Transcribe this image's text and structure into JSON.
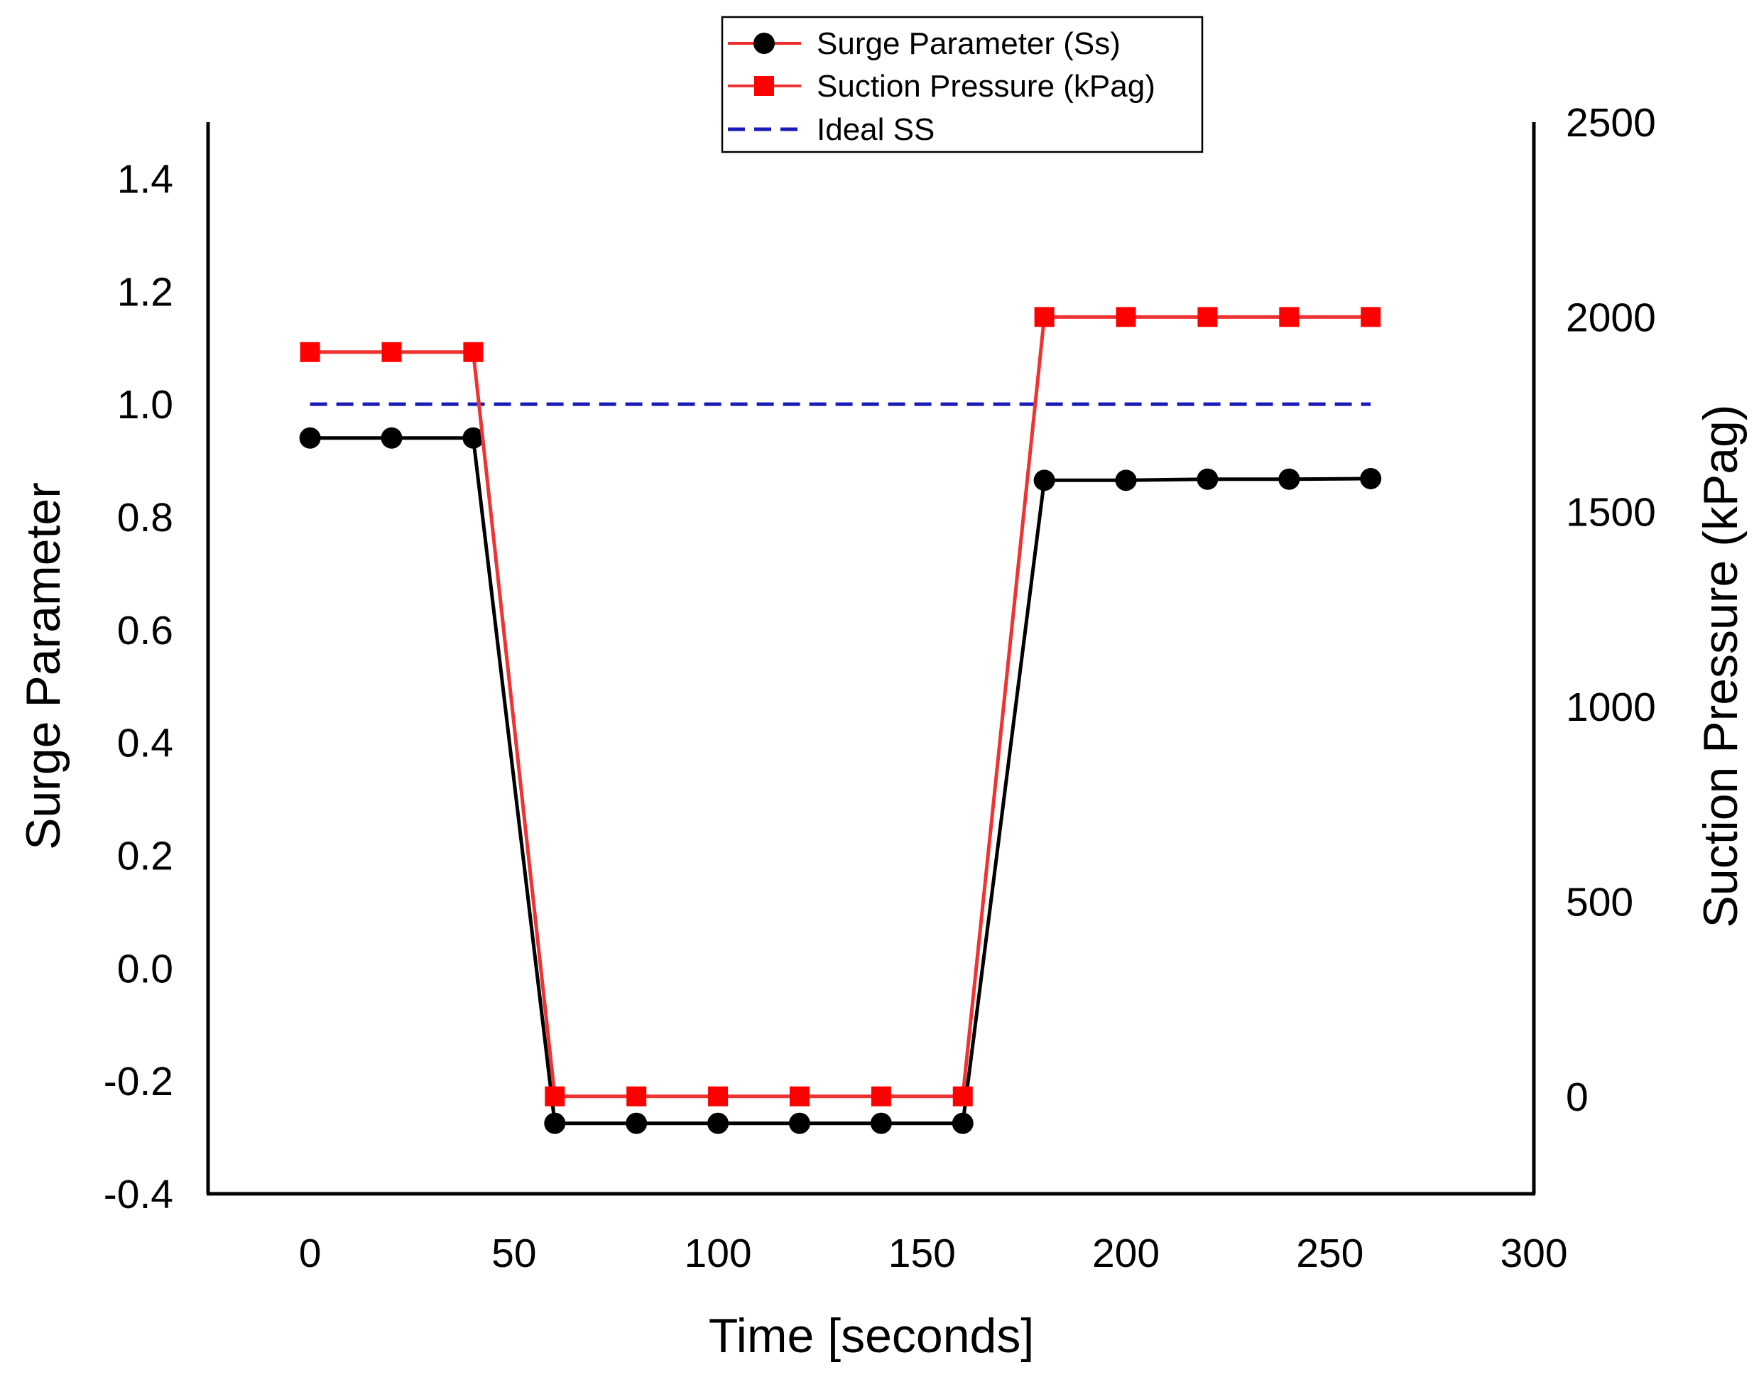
{
  "chart_data": {
    "type": "line",
    "title": "",
    "xlabel": "Time [seconds]",
    "ylabel": "Surge Parameter",
    "y2label": "Suction Pressure (kPag)",
    "xlim": [
      -25,
      300
    ],
    "ylim": [
      -0.4,
      1.5
    ],
    "y2lim": [
      -250,
      2500
    ],
    "x_ticks": [
      0,
      50,
      100,
      150,
      200,
      250,
      300
    ],
    "x_tick_labels": [
      "0",
      "50",
      "100",
      "150",
      "200",
      "250",
      "300"
    ],
    "y_ticks": [
      -0.4,
      -0.2,
      0.0,
      0.2,
      0.4,
      0.6,
      0.8,
      1.0,
      1.2,
      1.4
    ],
    "y_tick_labels": [
      "-0.4",
      "-0.2",
      "0.0",
      "0.2",
      "0.4",
      "0.6",
      "0.8",
      "1.0",
      "1.2",
      "1.4"
    ],
    "y2_ticks": [
      0,
      500,
      1000,
      1500,
      2000,
      2500
    ],
    "y2_tick_labels": [
      "0",
      "500",
      "1000",
      "1500",
      "2000",
      "2500"
    ],
    "grid": false,
    "legend_position": "top-center",
    "series": [
      {
        "name": "Surge Parameter (Ss)",
        "axis": "left",
        "color": "#000000",
        "legend_line_color": "#ee2b2b",
        "marker": "circle",
        "line_style": "solid",
        "x": [
          0,
          20,
          40,
          60,
          80,
          100,
          120,
          140,
          160,
          180,
          200,
          220,
          240,
          260
        ],
        "values": [
          0.94,
          0.94,
          0.94,
          -0.275,
          -0.275,
          -0.275,
          -0.275,
          -0.275,
          -0.275,
          0.865,
          0.865,
          0.867,
          0.867,
          0.868
        ]
      },
      {
        "name": "Suction Pressure (kPag)",
        "axis": "right",
        "color": "#ee3333",
        "marker_color": "#ff0000",
        "marker": "square",
        "line_style": "solid",
        "x": [
          0,
          20,
          40,
          60,
          80,
          100,
          120,
          140,
          160,
          180,
          200,
          220,
          240,
          260
        ],
        "values": [
          1910,
          1910,
          1910,
          0,
          0,
          0,
          0,
          0,
          0,
          2000,
          2000,
          2000,
          2000,
          2000
        ]
      },
      {
        "name": "Ideal SS",
        "axis": "left",
        "color": "#1a1ab8",
        "marker": "none",
        "line_style": "dashed",
        "x": [
          0,
          260
        ],
        "values": [
          1.0,
          1.0
        ]
      }
    ]
  }
}
